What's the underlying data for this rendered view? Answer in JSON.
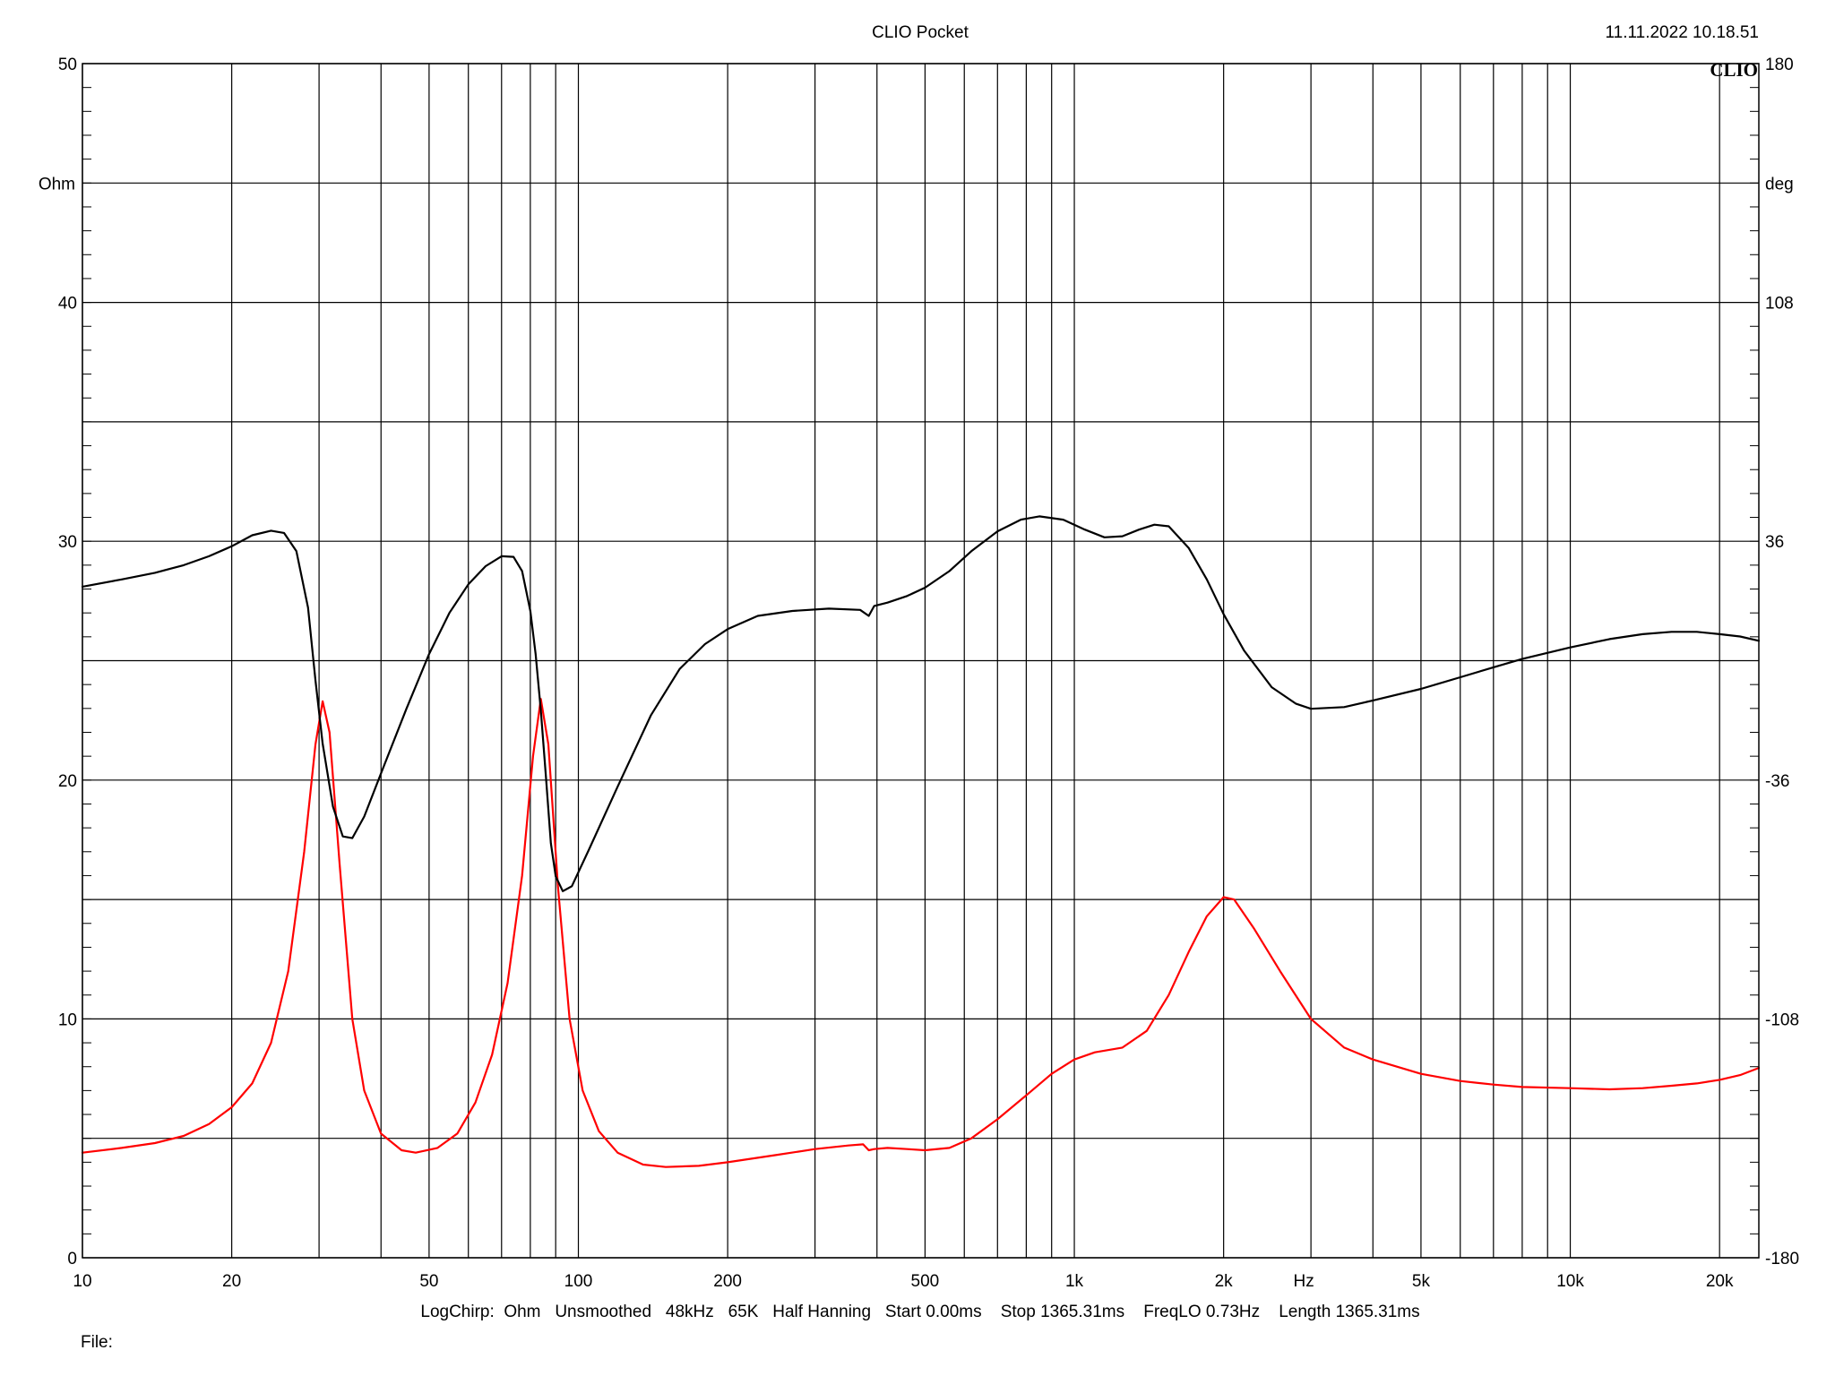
{
  "header": {
    "title": "CLIO Pocket",
    "timestamp": "11.11.2022 10.18.51",
    "brand": "CLIO"
  },
  "footer": {
    "info": "LogChirp:  Ohm   Unsmoothed   48kHz   65K   Half Hanning   Start 0.00ms    Stop 1365.31ms    FreqLO 0.73Hz    Length 1365.31ms",
    "file_label": "File:"
  },
  "chart_data": {
    "type": "line",
    "xscale": "log",
    "xlim": [
      10,
      24000
    ],
    "ylim_left": [
      0,
      50
    ],
    "ylim_right": [
      -180,
      180
    ],
    "grid": true,
    "xlabel": "Hz",
    "ylabel_left": "Ohm",
    "ylabel_right": "deg",
    "x_ticks": [
      {
        "v": 10,
        "label": "10"
      },
      {
        "v": 20,
        "label": "20"
      },
      {
        "v": 50,
        "label": "50"
      },
      {
        "v": 100,
        "label": "100"
      },
      {
        "v": 200,
        "label": "200"
      },
      {
        "v": 500,
        "label": "500"
      },
      {
        "v": 1000,
        "label": "1k"
      },
      {
        "v": 2000,
        "label": "2k"
      },
      {
        "v": 5000,
        "label": "5k"
      },
      {
        "v": 10000,
        "label": "10k"
      },
      {
        "v": 20000,
        "label": "20k"
      }
    ],
    "x_unit_label_at": 3000,
    "x_gridlines": [
      10,
      20,
      30,
      40,
      50,
      60,
      70,
      80,
      90,
      100,
      200,
      300,
      400,
      500,
      600,
      700,
      800,
      900,
      1000,
      2000,
      3000,
      4000,
      5000,
      6000,
      7000,
      8000,
      9000,
      10000,
      20000
    ],
    "y_left_ticks": [
      {
        "v": 0,
        "label": "0"
      },
      {
        "v": 10,
        "label": "10"
      },
      {
        "v": 20,
        "label": "20"
      },
      {
        "v": 30,
        "label": "30"
      },
      {
        "v": 40,
        "label": "40"
      },
      {
        "v": 50,
        "label": "50"
      }
    ],
    "y_right_ticks": [
      {
        "v": -180,
        "label": "-180"
      },
      {
        "v": -108,
        "label": "-108"
      },
      {
        "v": -36,
        "label": "-36"
      },
      {
        "v": 36,
        "label": "36"
      },
      {
        "v": 108,
        "label": "108"
      },
      {
        "v": 180,
        "label": "180"
      }
    ],
    "y_gridlines": [
      0,
      5,
      10,
      15,
      20,
      25,
      30,
      35,
      40,
      45,
      50
    ],
    "series": [
      {
        "axis": "left",
        "color": "#ff0000",
        "points": [
          [
            10,
            4.4
          ],
          [
            12,
            4.6
          ],
          [
            14,
            4.8
          ],
          [
            16,
            5.1
          ],
          [
            18,
            5.6
          ],
          [
            20,
            6.3
          ],
          [
            22,
            7.3
          ],
          [
            24,
            9.0
          ],
          [
            26,
            12.0
          ],
          [
            28,
            17.0
          ],
          [
            29.5,
            21.5
          ],
          [
            30.5,
            23.3
          ],
          [
            31.5,
            22.0
          ],
          [
            33,
            16.5
          ],
          [
            35,
            10.0
          ],
          [
            37,
            7.0
          ],
          [
            40,
            5.2
          ],
          [
            44,
            4.5
          ],
          [
            47,
            4.4
          ],
          [
            52,
            4.6
          ],
          [
            57,
            5.2
          ],
          [
            62,
            6.5
          ],
          [
            67,
            8.5
          ],
          [
            72,
            11.5
          ],
          [
            77,
            16.0
          ],
          [
            81,
            21.0
          ],
          [
            84,
            23.4
          ],
          [
            87,
            21.5
          ],
          [
            91,
            15.5
          ],
          [
            96,
            10.0
          ],
          [
            102,
            7.0
          ],
          [
            110,
            5.3
          ],
          [
            120,
            4.4
          ],
          [
            135,
            3.9
          ],
          [
            150,
            3.8
          ],
          [
            175,
            3.85
          ],
          [
            200,
            4.0
          ],
          [
            250,
            4.3
          ],
          [
            300,
            4.55
          ],
          [
            350,
            4.7
          ],
          [
            375,
            4.75
          ],
          [
            385,
            4.5
          ],
          [
            395,
            4.55
          ],
          [
            420,
            4.6
          ],
          [
            460,
            4.55
          ],
          [
            500,
            4.5
          ],
          [
            560,
            4.6
          ],
          [
            620,
            5.0
          ],
          [
            700,
            5.8
          ],
          [
            800,
            6.8
          ],
          [
            900,
            7.7
          ],
          [
            1000,
            8.3
          ],
          [
            1100,
            8.6
          ],
          [
            1250,
            8.8
          ],
          [
            1400,
            9.5
          ],
          [
            1550,
            11.0
          ],
          [
            1700,
            12.8
          ],
          [
            1850,
            14.3
          ],
          [
            2000,
            15.1
          ],
          [
            2100,
            15.0
          ],
          [
            2300,
            13.8
          ],
          [
            2600,
            12.0
          ],
          [
            3000,
            10.0
          ],
          [
            3500,
            8.8
          ],
          [
            4000,
            8.3
          ],
          [
            5000,
            7.7
          ],
          [
            6000,
            7.4
          ],
          [
            7000,
            7.25
          ],
          [
            8000,
            7.15
          ],
          [
            10000,
            7.1
          ],
          [
            12000,
            7.05
          ],
          [
            14000,
            7.1
          ],
          [
            16000,
            7.2
          ],
          [
            18000,
            7.3
          ],
          [
            20000,
            7.45
          ],
          [
            22000,
            7.65
          ],
          [
            24000,
            7.95
          ]
        ]
      },
      {
        "axis": "right",
        "color": "#000000",
        "points": [
          [
            10,
            22.3
          ],
          [
            12,
            24.5
          ],
          [
            14,
            26.5
          ],
          [
            16,
            28.8
          ],
          [
            18,
            31.5
          ],
          [
            20,
            34.5
          ],
          [
            22,
            37.8
          ],
          [
            24,
            39.2
          ],
          [
            25.5,
            38.5
          ],
          [
            27,
            33.0
          ],
          [
            28.5,
            16.0
          ],
          [
            29.5,
            -6.0
          ],
          [
            30.5,
            -25.0
          ],
          [
            32,
            -44.0
          ],
          [
            33.5,
            -53.0
          ],
          [
            35,
            -53.5
          ],
          [
            37,
            -47.0
          ],
          [
            40,
            -34.0
          ],
          [
            45,
            -14.5
          ],
          [
            50,
            2.0
          ],
          [
            55,
            14.5
          ],
          [
            60,
            23.0
          ],
          [
            65,
            28.5
          ],
          [
            70,
            31.5
          ],
          [
            74,
            31.3
          ],
          [
            77,
            27.0
          ],
          [
            80,
            15.0
          ],
          [
            82,
            2.0
          ],
          [
            84,
            -15.0
          ],
          [
            86,
            -35.0
          ],
          [
            88,
            -55.0
          ],
          [
            90,
            -65.0
          ],
          [
            93,
            -69.5
          ],
          [
            97,
            -68.0
          ],
          [
            105,
            -57.0
          ],
          [
            120,
            -38.0
          ],
          [
            140,
            -16.5
          ],
          [
            160,
            -2.5
          ],
          [
            180,
            5.0
          ],
          [
            200,
            9.5
          ],
          [
            230,
            13.5
          ],
          [
            270,
            15.0
          ],
          [
            320,
            15.7
          ],
          [
            370,
            15.3
          ],
          [
            385,
            13.5
          ],
          [
            395,
            16.5
          ],
          [
            420,
            17.5
          ],
          [
            460,
            19.5
          ],
          [
            500,
            22.0
          ],
          [
            560,
            27.0
          ],
          [
            620,
            33.0
          ],
          [
            700,
            39.0
          ],
          [
            780,
            42.5
          ],
          [
            850,
            43.5
          ],
          [
            950,
            42.5
          ],
          [
            1050,
            39.5
          ],
          [
            1150,
            37.2
          ],
          [
            1250,
            37.5
          ],
          [
            1350,
            39.5
          ],
          [
            1450,
            41.0
          ],
          [
            1550,
            40.5
          ],
          [
            1700,
            34.0
          ],
          [
            1850,
            24.5
          ],
          [
            2000,
            14.0
          ],
          [
            2200,
            3.0
          ],
          [
            2500,
            -8.0
          ],
          [
            2800,
            -13.0
          ],
          [
            3000,
            -14.5
          ],
          [
            3500,
            -14.0
          ],
          [
            4000,
            -12.0
          ],
          [
            5000,
            -8.5
          ],
          [
            6000,
            -5.0
          ],
          [
            7000,
            -2.0
          ],
          [
            8000,
            0.5
          ],
          [
            10000,
            4.0
          ],
          [
            12000,
            6.5
          ],
          [
            14000,
            8.0
          ],
          [
            16000,
            8.7
          ],
          [
            18000,
            8.7
          ],
          [
            20000,
            8.0
          ],
          [
            22000,
            7.3
          ],
          [
            24000,
            6.0
          ]
        ]
      }
    ]
  }
}
